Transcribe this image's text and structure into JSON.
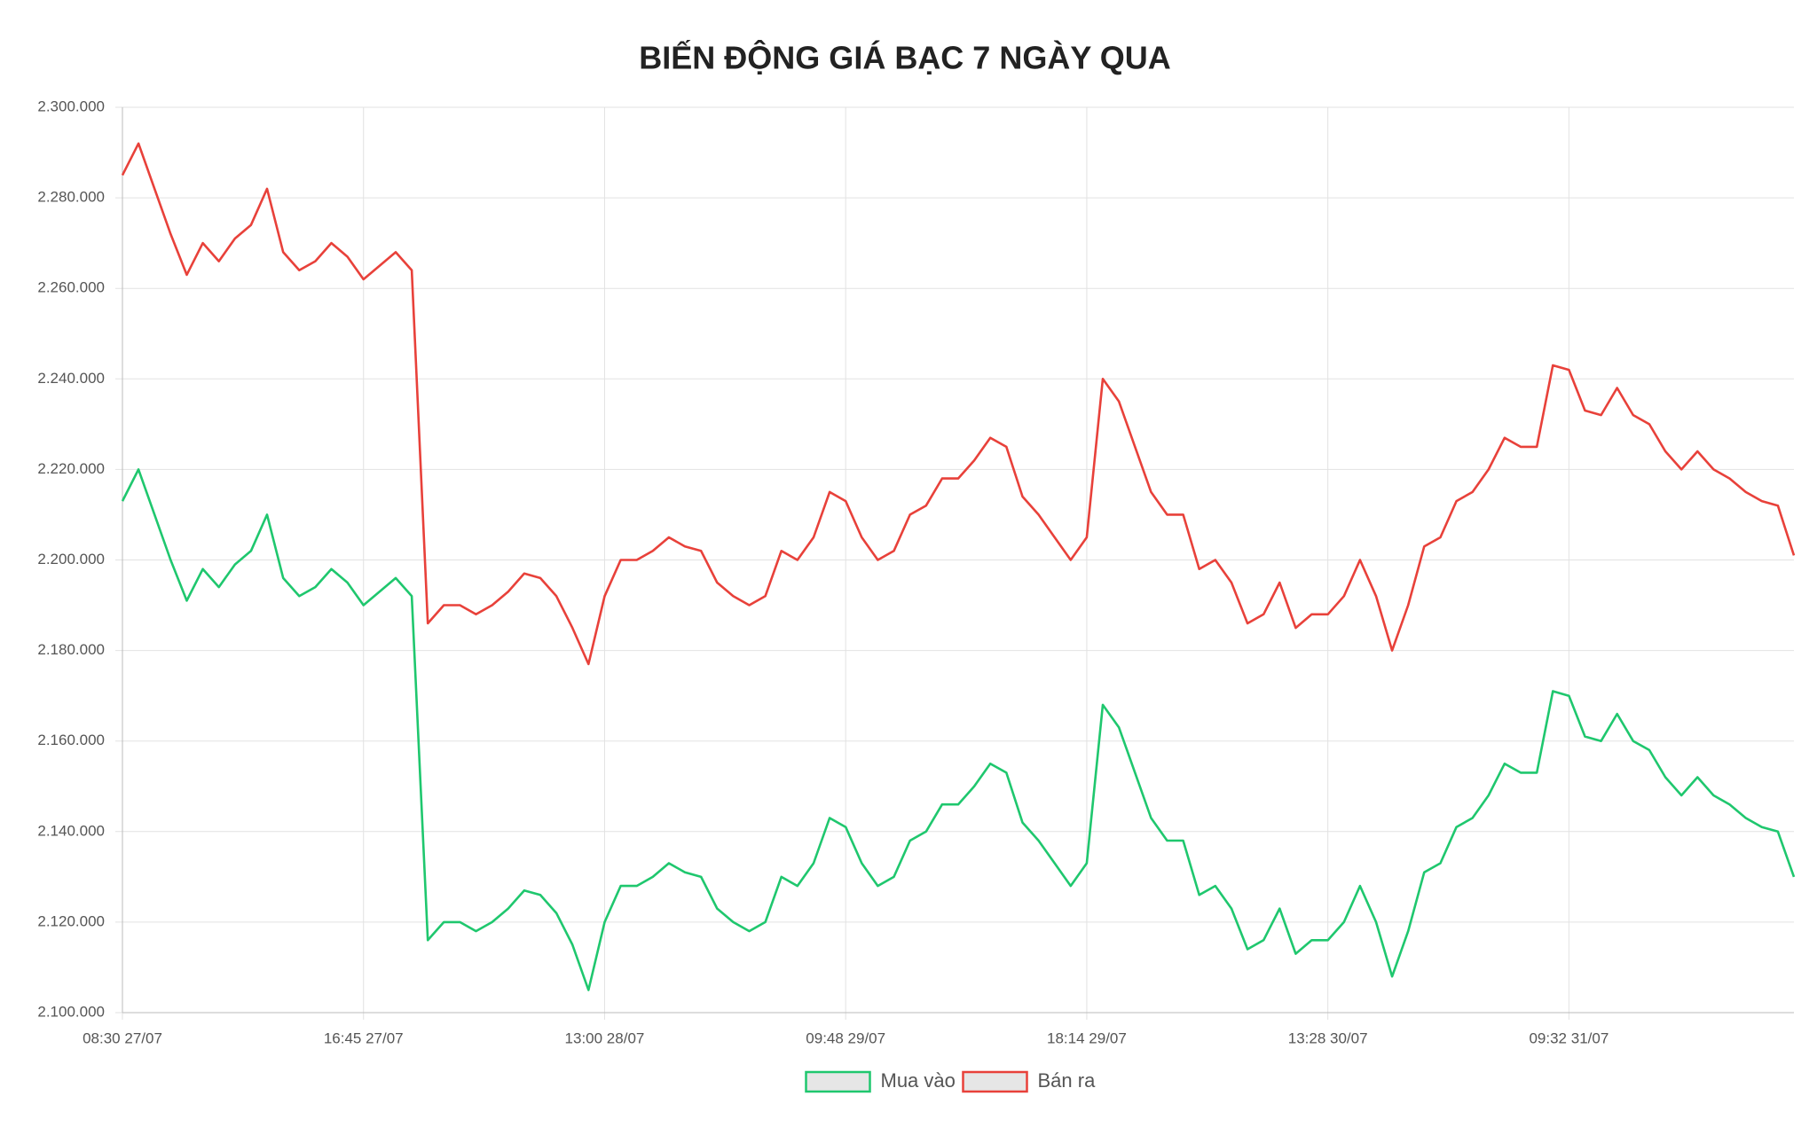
{
  "chart_data": {
    "type": "line",
    "title": "BIẾN ĐỘNG GIÁ BẠC 7 NGÀY QUA",
    "categories": [
      "08:30 27/07",
      null,
      null,
      null,
      null,
      null,
      null,
      null,
      null,
      null,
      null,
      null,
      null,
      null,
      null,
      "16:45 27/07",
      null,
      null,
      null,
      null,
      null,
      null,
      null,
      null,
      null,
      null,
      null,
      null,
      null,
      null,
      "13:00 28/07",
      null,
      null,
      null,
      null,
      null,
      null,
      null,
      null,
      null,
      null,
      null,
      null,
      null,
      null,
      "09:48 29/07",
      null,
      null,
      null,
      null,
      null,
      null,
      null,
      null,
      null,
      null,
      null,
      null,
      null,
      null,
      "18:14 29/07",
      null,
      null,
      null,
      null,
      null,
      null,
      null,
      null,
      null,
      null,
      null,
      null,
      null,
      null,
      "13:28 30/07",
      null,
      null,
      null,
      null,
      null,
      null,
      null,
      null,
      null,
      null,
      null,
      null,
      null,
      null,
      "09:32 31/07",
      null,
      null,
      null,
      null,
      null,
      null,
      null,
      null,
      null,
      null,
      null,
      null,
      null,
      null
    ],
    "series": [
      {
        "name": "Mua vào",
        "color": "#1fc76e",
        "values": [
          2213000,
          2220000,
          2210000,
          2200000,
          2191000,
          2198000,
          2194000,
          2199000,
          2202000,
          2210000,
          2196000,
          2192000,
          2194000,
          2198000,
          2195000,
          2190000,
          2193000,
          2196000,
          2192000,
          2116000,
          2120000,
          2120000,
          2118000,
          2120000,
          2123000,
          2127000,
          2126000,
          2122000,
          2115000,
          2105000,
          2120000,
          2128000,
          2128000,
          2130000,
          2133000,
          2131000,
          2130000,
          2123000,
          2120000,
          2118000,
          2120000,
          2130000,
          2128000,
          2133000,
          2143000,
          2141000,
          2133000,
          2128000,
          2130000,
          2138000,
          2140000,
          2146000,
          2146000,
          2150000,
          2155000,
          2153000,
          2142000,
          2138000,
          2133000,
          2128000,
          2133000,
          2168000,
          2163000,
          2153000,
          2143000,
          2138000,
          2138000,
          2126000,
          2128000,
          2123000,
          2114000,
          2116000,
          2123000,
          2113000,
          2116000,
          2116000,
          2120000,
          2128000,
          2120000,
          2108000,
          2118000,
          2131000,
          2133000,
          2141000,
          2143000,
          2148000,
          2155000,
          2153000,
          2153000,
          2171000,
          2170000,
          2161000,
          2160000,
          2166000,
          2160000,
          2158000,
          2152000,
          2148000,
          2152000,
          2148000,
          2146000,
          2143000,
          2141000,
          2140000,
          2130000
        ]
      },
      {
        "name": "Bán ra",
        "color": "#e8413a",
        "values": [
          2285000,
          2292000,
          2282000,
          2272000,
          2263000,
          2270000,
          2266000,
          2271000,
          2274000,
          2282000,
          2268000,
          2264000,
          2266000,
          2270000,
          2267000,
          2262000,
          2265000,
          2268000,
          2264000,
          2186000,
          2190000,
          2190000,
          2188000,
          2190000,
          2193000,
          2197000,
          2196000,
          2192000,
          2185000,
          2177000,
          2192000,
          2200000,
          2200000,
          2202000,
          2205000,
          2203000,
          2202000,
          2195000,
          2192000,
          2190000,
          2192000,
          2202000,
          2200000,
          2205000,
          2215000,
          2213000,
          2205000,
          2200000,
          2202000,
          2210000,
          2212000,
          2218000,
          2218000,
          2222000,
          2227000,
          2225000,
          2214000,
          2210000,
          2205000,
          2200000,
          2205000,
          2240000,
          2235000,
          2225000,
          2215000,
          2210000,
          2210000,
          2198000,
          2200000,
          2195000,
          2186000,
          2188000,
          2195000,
          2185000,
          2188000,
          2188000,
          2192000,
          2200000,
          2192000,
          2180000,
          2190000,
          2203000,
          2205000,
          2213000,
          2215000,
          2220000,
          2227000,
          2225000,
          2225000,
          2243000,
          2242000,
          2233000,
          2232000,
          2238000,
          2232000,
          2230000,
          2224000,
          2220000,
          2224000,
          2220000,
          2218000,
          2215000,
          2213000,
          2212000,
          2201000
        ]
      }
    ],
    "ylim": [
      2100000,
      2300000
    ],
    "yticks": [
      {
        "value": 2100000,
        "label": "2.100.000"
      },
      {
        "value": 2120000,
        "label": "2.120.000"
      },
      {
        "value": 2140000,
        "label": "2.140.000"
      },
      {
        "value": 2160000,
        "label": "2.160.000"
      },
      {
        "value": 2180000,
        "label": "2.180.000"
      },
      {
        "value": 2200000,
        "label": "2.200.000"
      },
      {
        "value": 2220000,
        "label": "2.220.000"
      },
      {
        "value": 2240000,
        "label": "2.240.000"
      },
      {
        "value": 2260000,
        "label": "2.260.000"
      },
      {
        "value": 2280000,
        "label": "2.280.000"
      },
      {
        "value": 2300000,
        "label": "2.300.000"
      }
    ],
    "grid": true,
    "legend": "bottom"
  }
}
